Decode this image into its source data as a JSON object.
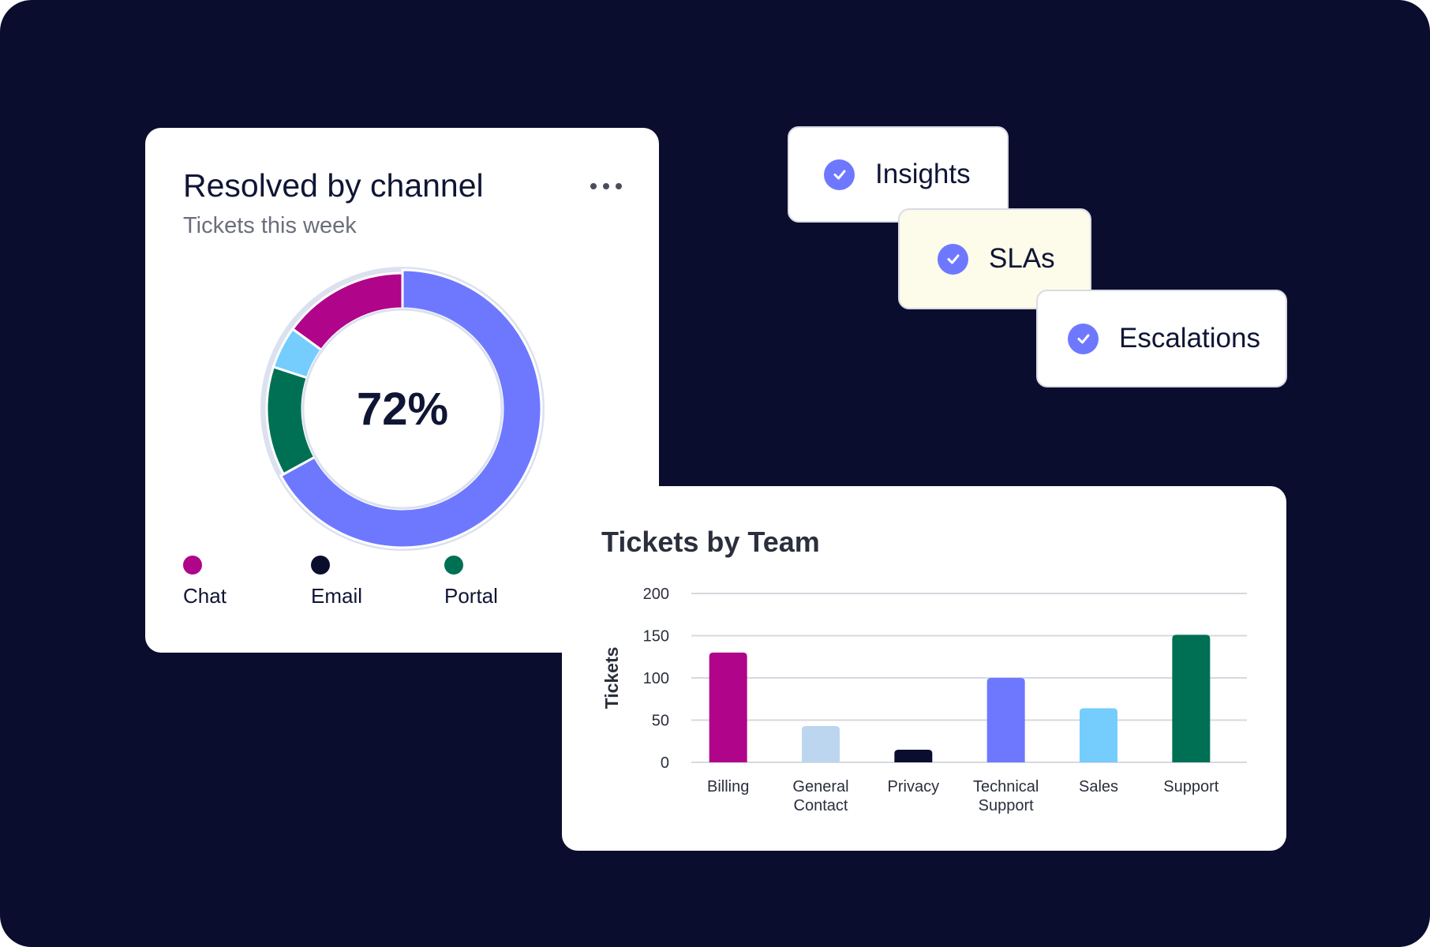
{
  "donut_card": {
    "title": "Resolved by channel",
    "subtitle": "Tickets this week",
    "center_value": "72%",
    "menu_icon": "more-horizontal-icon",
    "legend": [
      {
        "label": "Chat",
        "color": "#b0048a"
      },
      {
        "label": "Email",
        "color": "#0a0d2e"
      },
      {
        "label": "Portal",
        "color": "#007055"
      }
    ]
  },
  "tags": {
    "check_icon": "check-circle-icon",
    "items": [
      {
        "label": "Insights",
        "background": "#ffffff"
      },
      {
        "label": "SLAs",
        "background": "#fdfbe9"
      },
      {
        "label": "Escalations",
        "background": "#ffffff"
      }
    ]
  },
  "bar_card": {
    "title": "Tickets by Team"
  },
  "chart_data": [
    {
      "type": "pie",
      "subtype": "donut",
      "title": "Resolved by channel",
      "subtitle": "Tickets this week",
      "center_label": "72%",
      "segments": [
        {
          "value": 67,
          "color": "#6e78ff"
        },
        {
          "value": 13,
          "color": "#007055"
        },
        {
          "value": 5,
          "color": "#74cdfc"
        },
        {
          "value": 15,
          "color": "#b0048a"
        }
      ],
      "legend": [
        "Chat",
        "Email",
        "Portal"
      ],
      "legend_placement": "bottom"
    },
    {
      "type": "bar",
      "title": "Tickets by Team",
      "categories": [
        "Billing",
        "General Contact",
        "Privacy",
        "Technical Support",
        "Sales",
        "Support"
      ],
      "category_lines": [
        [
          "Billing"
        ],
        [
          "General",
          "Contact"
        ],
        [
          "Privacy"
        ],
        [
          "Technical",
          "Support"
        ],
        [
          "Sales"
        ],
        [
          "Support"
        ]
      ],
      "values": [
        130,
        43,
        15,
        100,
        64,
        151
      ],
      "colors": [
        "#b0048a",
        "#bdd6f0",
        "#0a0d2e",
        "#6e78ff",
        "#74cdfc",
        "#007055"
      ],
      "ylabel": "Tickets",
      "xlabel": "",
      "ylim": [
        0,
        200
      ],
      "yticks": [
        0,
        50,
        100,
        150,
        200
      ],
      "grid": true
    }
  ]
}
